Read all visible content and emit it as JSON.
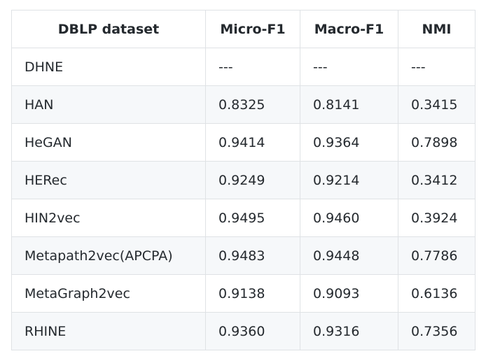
{
  "table": {
    "header": [
      "DBLP dataset",
      "Micro-F1",
      "Macro-F1",
      "NMI"
    ],
    "rows": [
      [
        "DHNE",
        "---",
        "---",
        "---"
      ],
      [
        "HAN",
        "0.8325",
        "0.8141",
        "0.3415"
      ],
      [
        "HeGAN",
        "0.9414",
        "0.9364",
        "0.7898"
      ],
      [
        "HERec",
        "0.9249",
        "0.9214",
        "0.3412"
      ],
      [
        "HIN2vec",
        "0.9495",
        "0.9460",
        "0.3924"
      ],
      [
        "Metapath2vec(APCPA)",
        "0.9483",
        "0.9448",
        "0.7786"
      ],
      [
        "MetaGraph2vec",
        "0.9138",
        "0.9093",
        "0.6136"
      ],
      [
        "RHINE",
        "0.9360",
        "0.9316",
        "0.7356"
      ]
    ]
  }
}
